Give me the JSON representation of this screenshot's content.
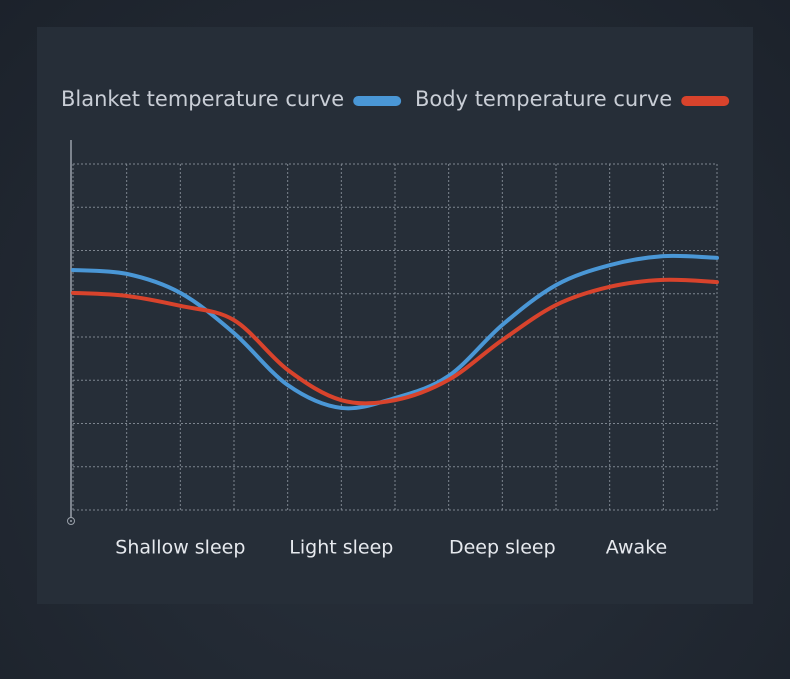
{
  "chart_data": {
    "type": "line",
    "x": [
      0,
      1,
      2,
      3,
      4,
      5,
      6,
      7,
      8,
      9,
      10,
      11,
      12
    ],
    "series": [
      {
        "name": "Blanket temperature curve",
        "color": "#4a97d6",
        "values": [
          5.55,
          5.46,
          5.02,
          4.09,
          2.89,
          2.36,
          2.59,
          3.1,
          4.28,
          5.2,
          5.66,
          5.87,
          5.83
        ]
      },
      {
        "name": "Body temperature curve",
        "color": "#d8432c",
        "values": [
          5.02,
          4.95,
          4.72,
          4.39,
          3.24,
          2.54,
          2.54,
          3.01,
          3.93,
          4.74,
          5.16,
          5.32,
          5.27
        ]
      }
    ],
    "xlim": [
      0,
      12
    ],
    "ylim": [
      0,
      8
    ],
    "xticks": [
      {
        "value": 2,
        "label": "Shallow sleep"
      },
      {
        "value": 5,
        "label": "Light sleep"
      },
      {
        "value": 8,
        "label": "Deep sleep"
      },
      {
        "value": 10.5,
        "label": "Awake"
      }
    ],
    "yticks": [
      0,
      1,
      2,
      3,
      4,
      5,
      6,
      7,
      8
    ],
    "grid": true
  }
}
